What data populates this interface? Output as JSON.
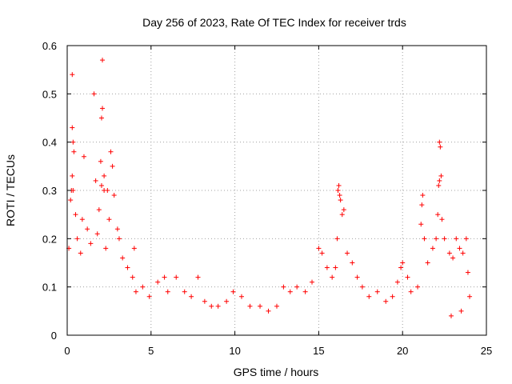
{
  "chart_data": {
    "type": "scatter",
    "title": "Day 256 of 2023, Rate Of TEC Index for receiver trds",
    "xlabel": "GPS time / hours",
    "ylabel": "ROTI / TECUs",
    "xlim": [
      0,
      25
    ],
    "ylim": [
      0,
      0.6
    ],
    "xticks": [
      0,
      5,
      10,
      15,
      20,
      25
    ],
    "xtick_labels": [
      "0",
      "5",
      "10",
      "15",
      "20",
      "25"
    ],
    "yticks": [
      0,
      0.1,
      0.2,
      0.3,
      0.4,
      0.5,
      0.6
    ],
    "ytick_labels": [
      "0",
      "0.1",
      "0.2",
      "0.3",
      "0.4",
      "0.5",
      "0.6"
    ],
    "grid": true,
    "marker": "+",
    "marker_color": "#ff0000",
    "series": [
      {
        "points": [
          [
            0.3,
            0.54
          ],
          [
            2.1,
            0.57
          ],
          [
            1.6,
            0.5
          ],
          [
            2.1,
            0.47
          ],
          [
            2.05,
            0.45
          ],
          [
            0.3,
            0.43
          ],
          [
            0.35,
            0.4
          ],
          [
            0.4,
            0.38
          ],
          [
            1.0,
            0.37
          ],
          [
            2.6,
            0.38
          ],
          [
            2.0,
            0.36
          ],
          [
            2.7,
            0.35
          ],
          [
            2.2,
            0.33
          ],
          [
            0.3,
            0.33
          ],
          [
            1.7,
            0.32
          ],
          [
            0.25,
            0.3
          ],
          [
            0.35,
            0.3
          ],
          [
            0.2,
            0.28
          ],
          [
            2.2,
            0.3
          ],
          [
            2.8,
            0.29
          ],
          [
            2.05,
            0.31
          ],
          [
            2.4,
            0.3
          ],
          [
            0.5,
            0.25
          ],
          [
            0.9,
            0.24
          ],
          [
            1.2,
            0.22
          ],
          [
            1.9,
            0.26
          ],
          [
            2.5,
            0.24
          ],
          [
            3.0,
            0.22
          ],
          [
            3.1,
            0.2
          ],
          [
            0.1,
            0.18
          ],
          [
            0.6,
            0.2
          ],
          [
            0.8,
            0.17
          ],
          [
            1.4,
            0.19
          ],
          [
            1.8,
            0.21
          ],
          [
            2.3,
            0.18
          ],
          [
            3.3,
            0.16
          ],
          [
            3.6,
            0.14
          ],
          [
            3.9,
            0.12
          ],
          [
            4.0,
            0.18
          ],
          [
            4.1,
            0.09
          ],
          [
            4.5,
            0.1
          ],
          [
            4.9,
            0.08
          ],
          [
            5.4,
            0.11
          ],
          [
            5.8,
            0.12
          ],
          [
            6.0,
            0.09
          ],
          [
            6.5,
            0.12
          ],
          [
            7.0,
            0.09
          ],
          [
            7.4,
            0.08
          ],
          [
            7.8,
            0.12
          ],
          [
            8.2,
            0.07
          ],
          [
            8.6,
            0.06
          ],
          [
            9.0,
            0.06
          ],
          [
            9.5,
            0.07
          ],
          [
            9.9,
            0.09
          ],
          [
            10.4,
            0.08
          ],
          [
            10.9,
            0.06
          ],
          [
            11.5,
            0.06
          ],
          [
            12.0,
            0.05
          ],
          [
            12.5,
            0.06
          ],
          [
            12.9,
            0.1
          ],
          [
            13.3,
            0.09
          ],
          [
            13.7,
            0.1
          ],
          [
            14.2,
            0.09
          ],
          [
            14.6,
            0.11
          ],
          [
            15.0,
            0.18
          ],
          [
            15.2,
            0.17
          ],
          [
            15.5,
            0.14
          ],
          [
            15.8,
            0.12
          ],
          [
            16.0,
            0.14
          ],
          [
            16.1,
            0.2
          ],
          [
            16.15,
            0.3
          ],
          [
            16.2,
            0.31
          ],
          [
            16.25,
            0.29
          ],
          [
            16.3,
            0.28
          ],
          [
            16.4,
            0.25
          ],
          [
            16.5,
            0.26
          ],
          [
            16.7,
            0.17
          ],
          [
            17.0,
            0.15
          ],
          [
            17.3,
            0.12
          ],
          [
            17.6,
            0.1
          ],
          [
            18.0,
            0.08
          ],
          [
            18.5,
            0.09
          ],
          [
            19.0,
            0.07
          ],
          [
            19.4,
            0.08
          ],
          [
            19.7,
            0.11
          ],
          [
            19.9,
            0.14
          ],
          [
            20.0,
            0.15
          ],
          [
            20.3,
            0.12
          ],
          [
            20.5,
            0.09
          ],
          [
            20.9,
            0.1
          ],
          [
            21.1,
            0.23
          ],
          [
            21.15,
            0.27
          ],
          [
            21.2,
            0.29
          ],
          [
            21.3,
            0.2
          ],
          [
            21.5,
            0.15
          ],
          [
            21.8,
            0.18
          ],
          [
            22.0,
            0.2
          ],
          [
            22.1,
            0.25
          ],
          [
            22.15,
            0.31
          ],
          [
            22.2,
            0.32
          ],
          [
            22.2,
            0.4
          ],
          [
            22.25,
            0.39
          ],
          [
            22.3,
            0.33
          ],
          [
            22.35,
            0.24
          ],
          [
            22.5,
            0.2
          ],
          [
            22.8,
            0.17
          ],
          [
            23.0,
            0.16
          ],
          [
            23.2,
            0.2
          ],
          [
            23.4,
            0.18
          ],
          [
            23.6,
            0.17
          ],
          [
            23.8,
            0.2
          ],
          [
            23.9,
            0.13
          ],
          [
            24.0,
            0.08
          ],
          [
            23.5,
            0.05
          ],
          [
            22.9,
            0.04
          ]
        ]
      }
    ]
  }
}
